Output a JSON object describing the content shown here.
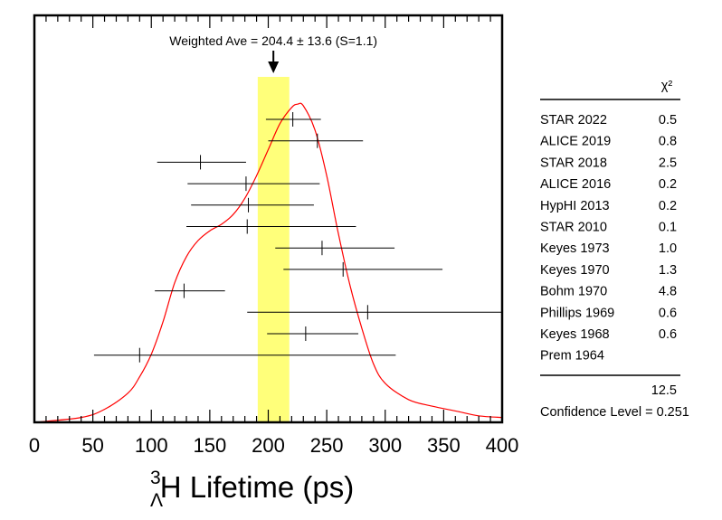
{
  "chart_data": {
    "type": "scatter",
    "subtype": "error-bar-ideogram",
    "xlabel": {
      "superscript": "3",
      "subscript": "Λ",
      "base": "H",
      "rest": " Lifetime (ps)"
    },
    "xlim": [
      0,
      400
    ],
    "xticks": [
      "0",
      "50",
      "100",
      "150",
      "200",
      "250",
      "300",
      "350",
      "400"
    ],
    "weighted_average": {
      "label": "Weighted Ave = 204.4 ± 13.6 (S=1.1)",
      "value": 204.4,
      "error": 13.6,
      "band": [
        191,
        218
      ],
      "band_color": "#ffff7a"
    },
    "ideogram_color": "#ff0000",
    "ideogram": [
      [
        0,
        0.0
      ],
      [
        40,
        0.015
      ],
      [
        60,
        0.04
      ],
      [
        80,
        0.09
      ],
      [
        90,
        0.14
      ],
      [
        100,
        0.21
      ],
      [
        110,
        0.31
      ],
      [
        120,
        0.43
      ],
      [
        130,
        0.51
      ],
      [
        140,
        0.56
      ],
      [
        150,
        0.59
      ],
      [
        160,
        0.61
      ],
      [
        170,
        0.64
      ],
      [
        180,
        0.69
      ],
      [
        190,
        0.76
      ],
      [
        200,
        0.84
      ],
      [
        210,
        0.92
      ],
      [
        220,
        0.97
      ],
      [
        225,
        0.98
      ],
      [
        230,
        0.975
      ],
      [
        240,
        0.9
      ],
      [
        250,
        0.76
      ],
      [
        260,
        0.58
      ],
      [
        270,
        0.42
      ],
      [
        280,
        0.29
      ],
      [
        290,
        0.18
      ],
      [
        300,
        0.12
      ],
      [
        320,
        0.07
      ],
      [
        340,
        0.05
      ],
      [
        360,
        0.035
      ],
      [
        380,
        0.02
      ],
      [
        400,
        0.015
      ]
    ],
    "measurements": [
      {
        "label": "STAR 2022",
        "value": 221,
        "low": 198,
        "high": 245,
        "chi2": "0.5"
      },
      {
        "label": "ALICE 2019",
        "value": 242,
        "low": 200,
        "high": 281,
        "chi2": "0.8"
      },
      {
        "label": "STAR 2018",
        "value": 142,
        "low": 105,
        "high": 181,
        "chi2": "2.5"
      },
      {
        "label": "ALICE 2016",
        "value": 181,
        "low": 131,
        "high": 244,
        "chi2": "0.2"
      },
      {
        "label": "HypHI 2013",
        "value": 183,
        "low": 134,
        "high": 239,
        "chi2": "0.2"
      },
      {
        "label": "STAR 2010",
        "value": 182,
        "low": 130,
        "high": 275,
        "chi2": "0.1"
      },
      {
        "label": "Keyes 1973",
        "value": 246,
        "low": 206,
        "high": 308,
        "chi2": "1.0"
      },
      {
        "label": "Keyes 1970",
        "value": 264,
        "low": 213,
        "high": 349,
        "chi2": "1.3"
      },
      {
        "label": "Bohm 1970",
        "value": 128,
        "low": 103,
        "high": 163,
        "chi2": "4.8"
      },
      {
        "label": "Phillips 1969",
        "value": 285,
        "low": 182,
        "high": 400,
        "chi2": "0.6"
      },
      {
        "label": "Keyes 1968",
        "value": 232,
        "low": 199,
        "high": 277,
        "chi2": "0.6"
      },
      {
        "label": "Prem 1964",
        "value": 90,
        "low": 51,
        "high": 309,
        "chi2": ""
      }
    ],
    "table_header": "χ²",
    "chi2_total": "12.5",
    "confidence_level": "Confidence Level = 0.251"
  }
}
